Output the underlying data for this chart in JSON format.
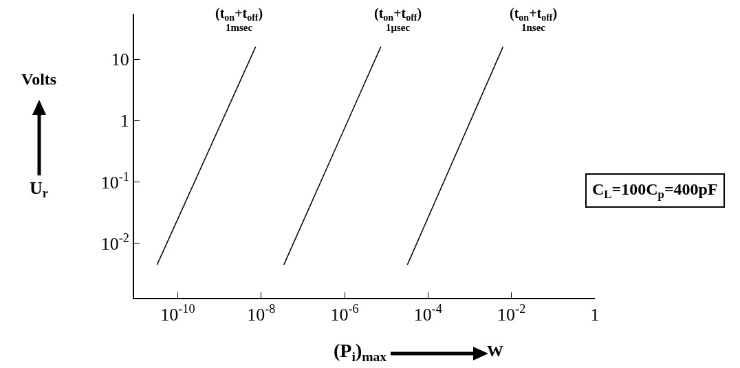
{
  "chart_data": {
    "type": "line",
    "log": "xy",
    "grid": false,
    "marker": "none",
    "line_style": "solid",
    "xlabel": "(P$_{i}$)$_{max}$",
    "ylabel": "U$_{r}$",
    "xlim": [
      9e-12,
      1
    ],
    "ylim": [
      0.0013,
      55
    ],
    "xticks": [
      {
        "value": 1e-10,
        "label": "10$^{-10}$"
      },
      {
        "value": 1e-08,
        "label": "10$^{-8}$"
      },
      {
        "value": 1e-06,
        "label": "10$^{-6}$"
      },
      {
        "value": 0.0001,
        "label": "10$^{-4}$"
      },
      {
        "value": 0.01,
        "label": "10$^{-2}$"
      },
      1
    ],
    "yticks": [
      {
        "value": 0.01,
        "label": "10$^{-2}$"
      },
      {
        "value": 0.1,
        "label": "10$^{-1}$"
      },
      1,
      10
    ],
    "series": [
      {
        "color": "#000000",
        "x": [
          3.2e-11,
          7.4e-09
        ],
        "values": [
          0.0045,
          16
        ]
      },
      {
        "color": "#000000",
        "x": [
          3.5e-08,
          7.4e-06
        ],
        "values": [
          0.0045,
          16
        ]
      },
      {
        "color": "#000000",
        "x": [
          3.2e-05,
          0.0063
        ],
        "values": [
          0.0045,
          16
        ]
      }
    ],
    "annotations": [
      "(t$_{on}$+t$_{off}$)",
      "1msec",
      "(t$_{on}$+t$_{off}$)",
      "1μsec",
      "(t$_{on}$+t$_{off}$)",
      "1nsec",
      "Volts",
      "W",
      "C$_{L}$=100C$_{p}$=400pF"
    ]
  }
}
